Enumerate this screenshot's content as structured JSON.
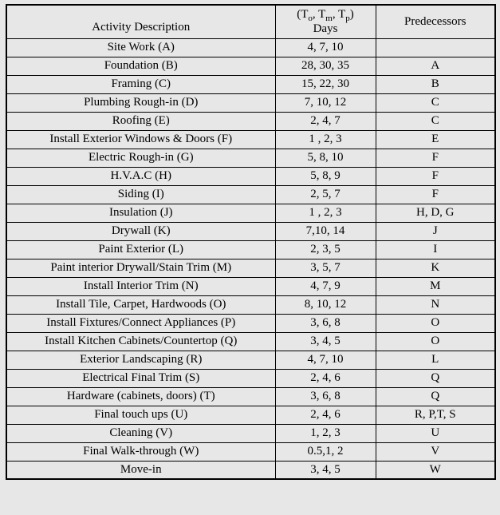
{
  "colors": {
    "background": "#e7e7e7",
    "border": "#000000",
    "text": "#000000"
  },
  "table": {
    "header": {
      "activity": "Activity Description",
      "days_parts": {
        "open": "(T",
        "sub1": "o",
        "mid1": ", T",
        "sub2": "m",
        "mid2": ", T",
        "sub3": "p",
        "close": ")"
      },
      "days_line2": "Days",
      "predecessors": "Predecessors"
    },
    "rows": [
      {
        "activity": "Site Work (A)",
        "days": "4, 7, 10",
        "pred": ""
      },
      {
        "activity": "Foundation (B)",
        "days": "28, 30, 35",
        "pred": "A"
      },
      {
        "activity": "Framing (C)",
        "days": "15, 22, 30",
        "pred": "B"
      },
      {
        "activity": "Plumbing Rough-in (D)",
        "days": "7, 10, 12",
        "pred": "C"
      },
      {
        "activity": "Roofing (E)",
        "days": "2, 4, 7",
        "pred": "C"
      },
      {
        "activity": "Install Exterior Windows & Doors (F)",
        "days": "1 , 2, 3",
        "pred": "E"
      },
      {
        "activity": "Electric Rough-in (G)",
        "days": "5, 8, 10",
        "pred": "F"
      },
      {
        "activity": "H.V.A.C (H)",
        "days": "5, 8, 9",
        "pred": "F"
      },
      {
        "activity": "Siding (I)",
        "days": "2, 5, 7",
        "pred": "F"
      },
      {
        "activity": "Insulation (J)",
        "days": "1 , 2, 3",
        "pred": "H, D, G"
      },
      {
        "activity": "Drywall (K)",
        "days": "7,10, 14",
        "pred": "J"
      },
      {
        "activity": "Paint Exterior (L)",
        "days": "2, 3, 5",
        "pred": "I"
      },
      {
        "activity": "Paint interior Drywall/Stain Trim (M)",
        "days": "3, 5, 7",
        "pred": "K"
      },
      {
        "activity": "Install Interior Trim (N)",
        "days": "4, 7, 9",
        "pred": "M"
      },
      {
        "activity": "Install Tile, Carpet, Hardwoods (O)",
        "days": "8, 10, 12",
        "pred": "N"
      },
      {
        "activity": "Install Fixtures/Connect Appliances (P)",
        "days": "3, 6, 8",
        "pred": "O"
      },
      {
        "activity": "Install Kitchen Cabinets/Countertop (Q)",
        "days": "3, 4, 5",
        "pred": "O"
      },
      {
        "activity": "Exterior Landscaping  (R)",
        "days": "4, 7, 10",
        "pred": "L"
      },
      {
        "activity": "Electrical Final Trim (S)",
        "days": "2, 4, 6",
        "pred": "Q"
      },
      {
        "activity": "Hardware (cabinets, doors) (T)",
        "days": "3, 6, 8",
        "pred": "Q"
      },
      {
        "activity": "Final touch ups (U)",
        "days": "2, 4, 6",
        "pred": "R, P,T, S"
      },
      {
        "activity": "Cleaning (V)",
        "days": "1, 2, 3",
        "pred": "U"
      },
      {
        "activity": "Final Walk-through (W)",
        "days": "0.5,1, 2",
        "pred": "V"
      },
      {
        "activity": "Move-in",
        "days": "3, 4, 5",
        "pred": "W"
      }
    ]
  }
}
